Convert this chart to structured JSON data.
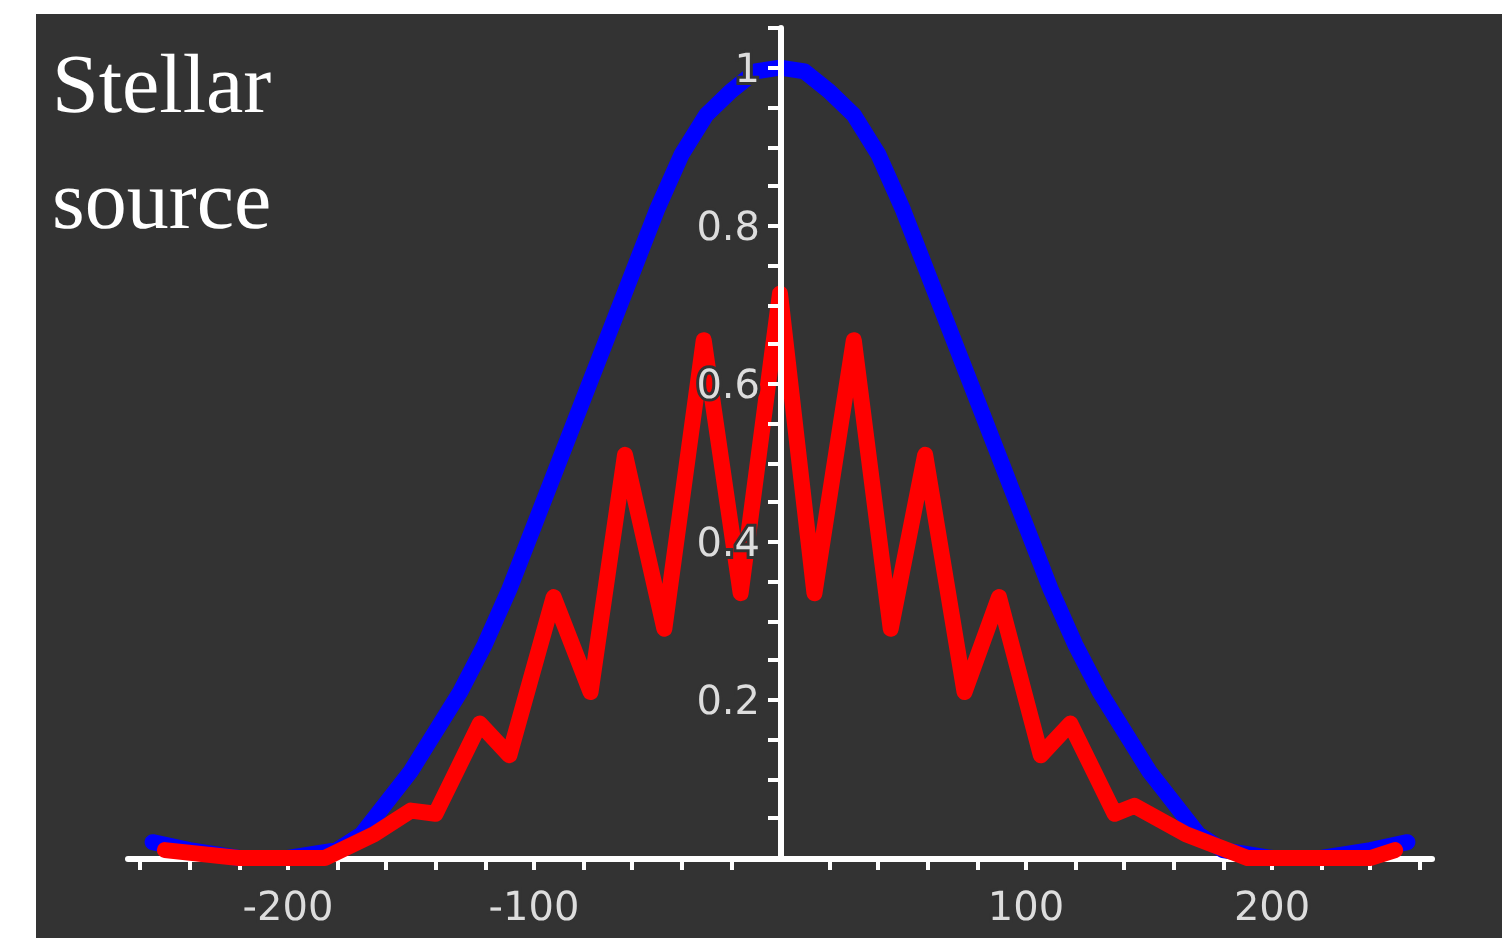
{
  "chart_data": {
    "type": "line",
    "title": "Stellar source",
    "xlim": [
      -265,
      265
    ],
    "xticks": [
      {
        "value": -260,
        "label": null
      },
      {
        "value": -240,
        "label": null
      },
      {
        "value": -220,
        "label": null
      },
      -200,
      {
        "value": -180,
        "label": null
      },
      {
        "value": -160,
        "label": null
      },
      {
        "value": -140,
        "label": null
      },
      {
        "value": -120,
        "label": null
      },
      -100,
      {
        "value": -80,
        "label": null
      },
      {
        "value": -60,
        "label": null
      },
      {
        "value": -40,
        "label": null
      },
      {
        "value": -20,
        "label": null
      },
      {
        "value": 20,
        "label": null
      },
      {
        "value": 40,
        "label": null
      },
      {
        "value": 60,
        "label": null
      },
      {
        "value": 80,
        "label": null
      },
      100,
      {
        "value": 120,
        "label": null
      },
      {
        "value": 140,
        "label": null
      },
      {
        "value": 160,
        "label": null
      },
      {
        "value": 180,
        "label": null
      },
      200,
      {
        "value": 220,
        "label": null
      },
      {
        "value": 240,
        "label": null
      },
      {
        "value": 260,
        "label": null
      }
    ],
    "ylim": [
      0,
      1.05
    ],
    "yticks": [
      {
        "value": 0.05,
        "label": null
      },
      {
        "value": 0.1,
        "label": null
      },
      {
        "value": 0.15,
        "label": null
      },
      0.2,
      {
        "value": 0.25,
        "label": null
      },
      {
        "value": 0.3,
        "label": null
      },
      {
        "value": 0.35,
        "label": null
      },
      0.4,
      {
        "value": 0.45,
        "label": null
      },
      {
        "value": 0.5,
        "label": null
      },
      {
        "value": 0.55,
        "label": null
      },
      0.6,
      {
        "value": 0.65,
        "label": null
      },
      {
        "value": 0.7,
        "label": null
      },
      {
        "value": 0.75,
        "label": null
      },
      0.8,
      {
        "value": 0.85,
        "label": null
      },
      {
        "value": 0.9,
        "label": null
      },
      {
        "value": 0.95,
        "label": null
      },
      1,
      {
        "value": 1.05,
        "label": null
      }
    ],
    "grid": false,
    "marker": "none",
    "line_style": "solid",
    "series": [
      {
        "color": "#0000ff",
        "x": [
          -255,
          -240,
          -220,
          -200,
          -180,
          -170,
          -160,
          -150,
          -140,
          -130,
          -120,
          -110,
          -100,
          -90,
          -80,
          -70,
          -60,
          -50,
          -40,
          -30,
          -20,
          -10,
          0,
          10,
          20,
          30,
          40,
          50,
          60,
          70,
          80,
          90,
          100,
          110,
          120,
          130,
          140,
          150,
          160,
          170,
          180,
          200,
          220,
          240,
          255
        ],
        "values": [
          0.02,
          0.01,
          0,
          0,
          0.01,
          0.03,
          0.07,
          0.11,
          0.16,
          0.21,
          0.27,
          0.34,
          0.42,
          0.5,
          0.58,
          0.66,
          0.74,
          0.82,
          0.89,
          0.94,
          0.97,
          0.995,
          1,
          0.995,
          0.97,
          0.94,
          0.89,
          0.82,
          0.74,
          0.66,
          0.58,
          0.5,
          0.42,
          0.34,
          0.27,
          0.21,
          0.16,
          0.11,
          0.07,
          0.03,
          0.01,
          0,
          0,
          0.01,
          0.02
        ]
      },
      {
        "color": "#ff0000",
        "x": [
          -250,
          -220,
          -200,
          -185,
          -165,
          -150,
          -140,
          -122,
          -110,
          -92,
          -77,
          -63,
          -47,
          -31,
          -16,
          0,
          14,
          30,
          45,
          59,
          75,
          89,
          106,
          118,
          136,
          144,
          165,
          190,
          210,
          240,
          250
        ],
        "values": [
          0.01,
          0,
          0,
          0,
          0.03,
          0.06,
          0.056,
          0.17,
          0.13,
          0.33,
          0.21,
          0.51,
          0.29,
          0.655,
          0.335,
          0.714,
          0.335,
          0.655,
          0.29,
          0.51,
          0.21,
          0.33,
          0.13,
          0.17,
          0.056,
          0.066,
          0.03,
          0,
          0,
          0,
          0.01
        ]
      }
    ]
  }
}
